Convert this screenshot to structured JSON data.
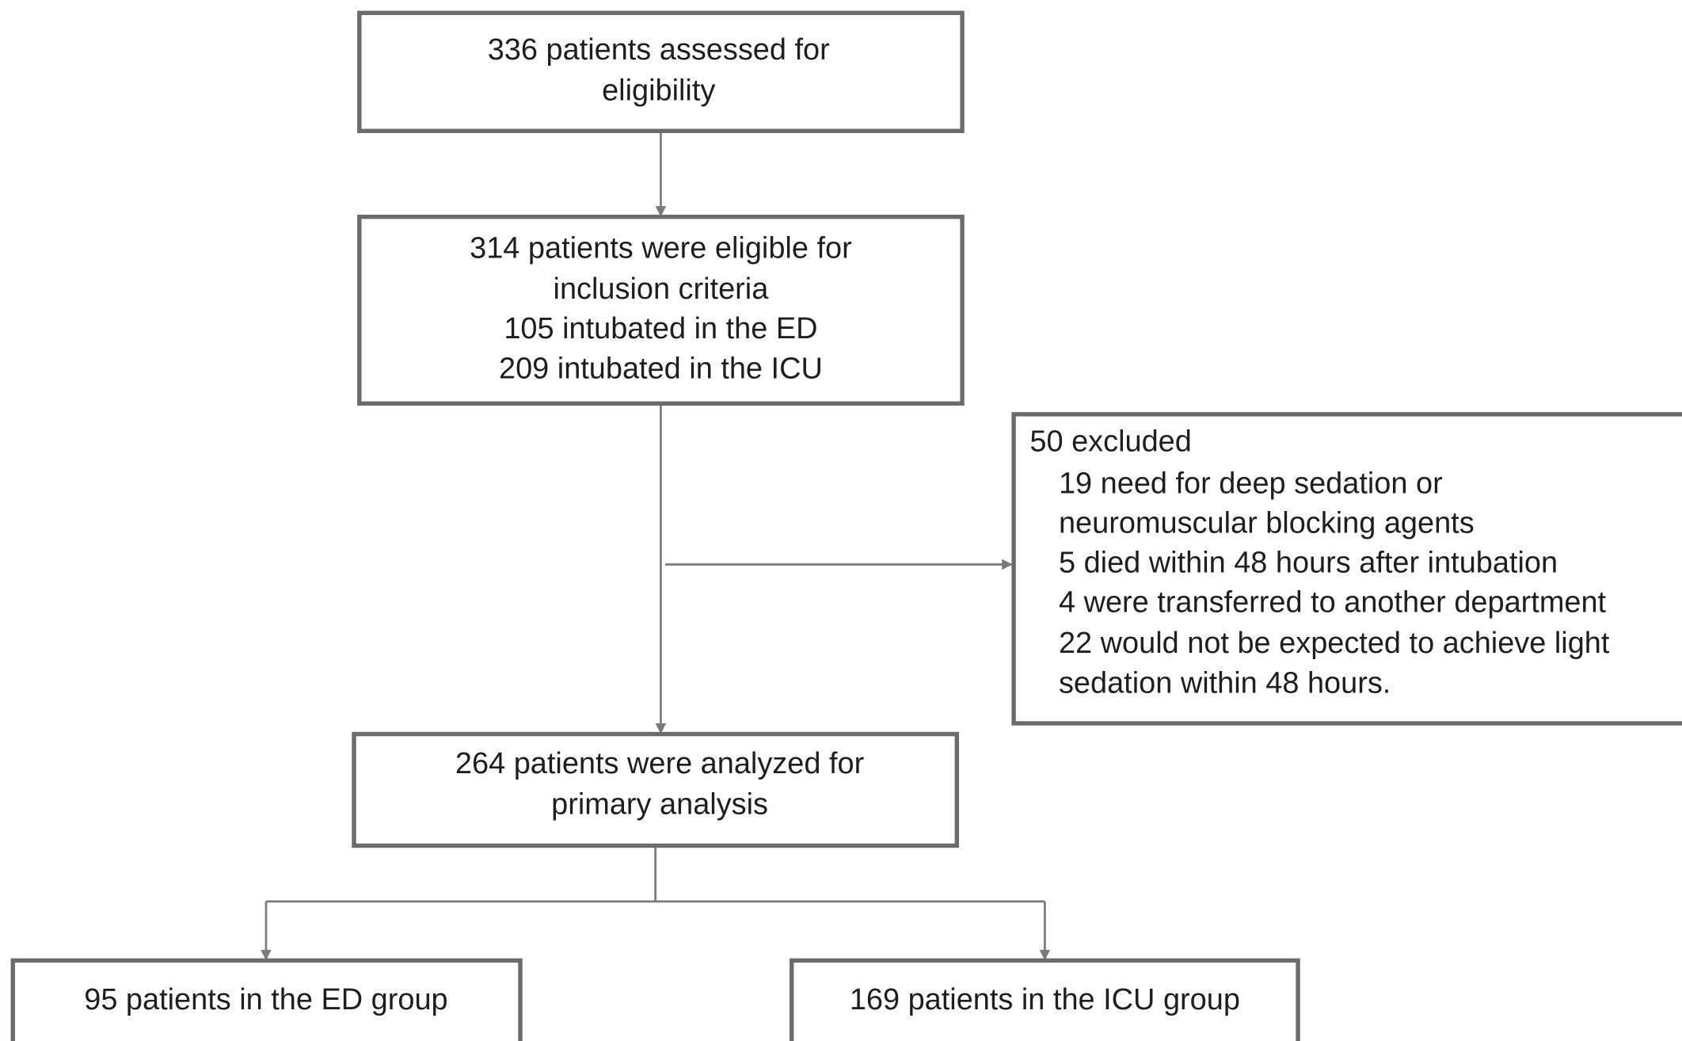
{
  "nodes": [
    {
      "lines": [
        "336 patients assessed for",
        "eligibility"
      ]
    },
    {
      "lines": [
        "314 patients were eligible for",
        "inclusion criteria",
        "105 intubated in the ED",
        "209 intubated in the ICU"
      ]
    },
    {
      "lines": [
        "50 excluded",
        "19 need for deep sedation or",
        "neuromuscular blocking agents",
        "5 died within 48 hours after intubation",
        "4 were transferred to another department",
        "22 would not be expected to achieve light",
        "sedation within 48 hours."
      ]
    },
    {
      "lines": [
        "264 patients were analyzed for",
        "primary analysis"
      ]
    },
    {
      "lines": [
        "95 patients in the ED group"
      ]
    },
    {
      "lines": [
        "169 patients in the ICU group"
      ]
    }
  ]
}
